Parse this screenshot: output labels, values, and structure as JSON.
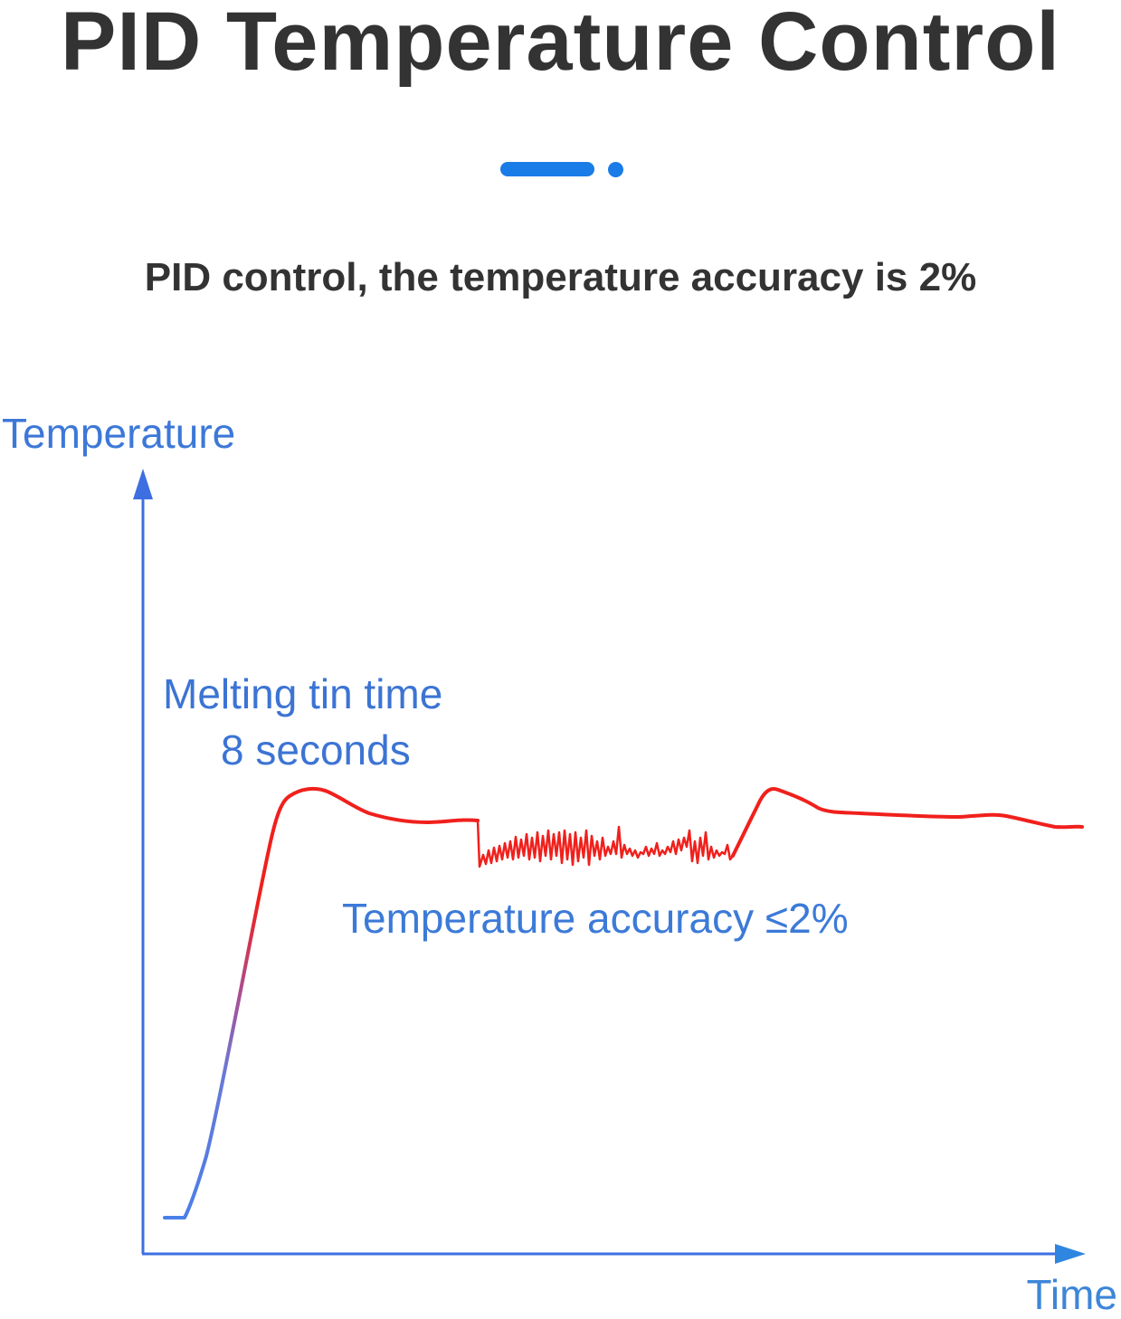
{
  "title": "PID Temperature Control",
  "subtitle": "PID control, the temperature accuracy is 2%",
  "colors": {
    "title": "#333333",
    "accent": "#1a7ce6",
    "axis": "#3d6fe0",
    "curve_heating": "#4a7fe8",
    "curve_stable": "#f0201c",
    "label": "#3c74d4"
  },
  "diagram": {
    "y_axis_label": "Temperature",
    "x_axis_label": "Time",
    "annotation_melting_line1": "Melting tin time",
    "annotation_melting_line2": "8 seconds",
    "annotation_accuracy": "Temperature accuracy ≤2%"
  }
}
